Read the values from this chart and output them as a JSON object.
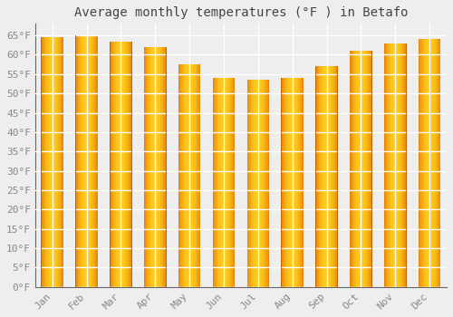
{
  "title": "Average monthly temperatures (°F ) in Betafo",
  "months": [
    "Jan",
    "Feb",
    "Mar",
    "Apr",
    "May",
    "Jun",
    "Jul",
    "Aug",
    "Sep",
    "Oct",
    "Nov",
    "Dec"
  ],
  "values": [
    64.5,
    65.0,
    63.5,
    62.0,
    57.5,
    54.0,
    53.5,
    54.0,
    57.0,
    61.0,
    63.0,
    64.0
  ],
  "bar_color_light": "#FFD060",
  "bar_color_main": "#FFA500",
  "bar_color_dark": "#E07800",
  "background_color": "#eeeeee",
  "grid_color": "#ffffff",
  "text_color": "#888888",
  "ylim": [
    0,
    68
  ],
  "yticks": [
    0,
    5,
    10,
    15,
    20,
    25,
    30,
    35,
    40,
    45,
    50,
    55,
    60,
    65
  ],
  "title_fontsize": 10,
  "tick_fontsize": 8,
  "bar_width": 0.65
}
